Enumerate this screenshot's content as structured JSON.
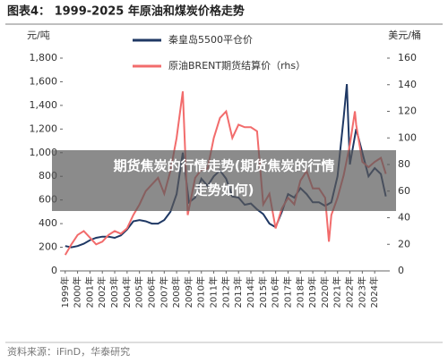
{
  "chart_data": {
    "type": "line",
    "title": "图表4：  1999-2025 年原油和煤炭价格走势",
    "ylabel": "元/吨",
    "y2label": "美元/桶",
    "xlim": [
      1998.8,
      2025
    ],
    "ylim": [
      0,
      1800
    ],
    "y2lim": [
      0,
      160
    ],
    "xticks": [
      {
        "value": 1999,
        "label": "1999年"
      },
      {
        "value": 2000,
        "label": "2000年"
      },
      {
        "value": 2001,
        "label": "2001年"
      },
      {
        "value": 2002,
        "label": "2002年"
      },
      {
        "value": 2003,
        "label": "2003年"
      },
      {
        "value": 2004,
        "label": "2004年"
      },
      {
        "value": 2005,
        "label": "2005年"
      },
      {
        "value": 2006,
        "label": "2006年"
      },
      {
        "value": 2007,
        "label": "2007年"
      },
      {
        "value": 2008,
        "label": "2008年"
      },
      {
        "value": 2009,
        "label": "2009年"
      },
      {
        "value": 2010,
        "label": "2010年"
      },
      {
        "value": 2011,
        "label": "2011年"
      },
      {
        "value": 2012,
        "label": "2012年"
      },
      {
        "value": 2013,
        "label": "2013年"
      },
      {
        "value": 2014,
        "label": "2014年"
      },
      {
        "value": 2015,
        "label": "2015年"
      },
      {
        "value": 2016,
        "label": "2016年"
      },
      {
        "value": 2017,
        "label": "2017年"
      },
      {
        "value": 2018,
        "label": "2018年"
      },
      {
        "value": 2019,
        "label": "2019年"
      },
      {
        "value": 2020,
        "label": "2020年"
      },
      {
        "value": 2021,
        "label": "2021年"
      },
      {
        "value": 2022,
        "label": "2022年"
      },
      {
        "value": 2023,
        "label": "2023年"
      },
      {
        "value": 2024,
        "label": "2024年"
      }
    ],
    "yticks": [
      0,
      200,
      400,
      600,
      800,
      {
        "value": 1000,
        "label": "1,000"
      },
      {
        "value": 1200,
        "label": "1,200"
      },
      {
        "value": 1400,
        "label": "1,400"
      },
      {
        "value": 1600,
        "label": "1,600"
      },
      {
        "value": 1800,
        "label": "1,800"
      }
    ],
    "y2ticks": [
      0,
      20,
      40,
      60,
      80,
      100,
      120,
      140,
      160
    ],
    "series": [
      {
        "name": "秦皇岛5500平仓价",
        "color": "#1f3864",
        "axis": "y",
        "x": [
          1999,
          1999.5,
          2000,
          2000.5,
          2001,
          2001.5,
          2002,
          2002.5,
          2003,
          2003.5,
          2004,
          2004.5,
          2005,
          2005.5,
          2006,
          2006.5,
          2007,
          2007.5,
          2008,
          2008.5,
          2009,
          2009.5,
          2010,
          2010.5,
          2011,
          2011.5,
          2012,
          2012.5,
          2013,
          2013.5,
          2014,
          2014.5,
          2015,
          2015.5,
          2016,
          2016.5,
          2017,
          2017.5,
          2018,
          2018.5,
          2019,
          2019.5,
          2020,
          2020.5,
          2021,
          2021.5,
          2021.75,
          2022,
          2022.5,
          2023,
          2023.5,
          2024,
          2024.5,
          2024.9
        ],
        "values": [
          210,
          200,
          210,
          230,
          260,
          280,
          290,
          290,
          280,
          300,
          350,
          420,
          430,
          420,
          400,
          400,
          430,
          500,
          650,
          1000,
          580,
          620,
          780,
          720,
          800,
          850,
          780,
          630,
          620,
          560,
          570,
          520,
          480,
          400,
          370,
          500,
          650,
          620,
          700,
          650,
          580,
          580,
          550,
          580,
          800,
          1300,
          1580,
          900,
          1200,
          1000,
          800,
          870,
          820,
          630
        ]
      },
      {
        "name": "原油BRENT期货结算价（rhs）",
        "color": "#f26c6c",
        "axis": "y2",
        "x": [
          1999,
          1999.5,
          2000,
          2000.5,
          2001,
          2001.5,
          2002,
          2002.5,
          2003,
          2003.5,
          2004,
          2004.5,
          2005,
          2005.5,
          2006,
          2006.5,
          2007,
          2007.5,
          2008,
          2008.5,
          2008.9,
          2009.5,
          2010,
          2010.5,
          2011,
          2011.5,
          2012,
          2012.5,
          2013,
          2013.5,
          2014,
          2014.5,
          2015,
          2015.5,
          2016,
          2016.5,
          2017,
          2017.5,
          2018,
          2018.5,
          2019,
          2019.5,
          2020,
          2020.3,
          2020.5,
          2021,
          2021.5,
          2022,
          2022.4,
          2022.5,
          2023,
          2023.5,
          2024,
          2024.5,
          2024.9
        ],
        "values": [
          12,
          20,
          27,
          30,
          25,
          20,
          22,
          27,
          30,
          28,
          32,
          42,
          50,
          60,
          65,
          70,
          58,
          75,
          100,
          135,
          42,
          70,
          76,
          77,
          100,
          115,
          120,
          100,
          110,
          108,
          108,
          105,
          50,
          58,
          32,
          47,
          55,
          50,
          68,
          75,
          62,
          62,
          55,
          22,
          42,
          55,
          72,
          95,
          120,
          110,
          82,
          78,
          82,
          85,
          73
        ]
      }
    ]
  },
  "overlay": {
    "lines": [
      "期货焦炭的行情走势(期货焦炭的行情",
      "走势如何)"
    ]
  },
  "source": "资料来源：iFinD，华泰研究"
}
